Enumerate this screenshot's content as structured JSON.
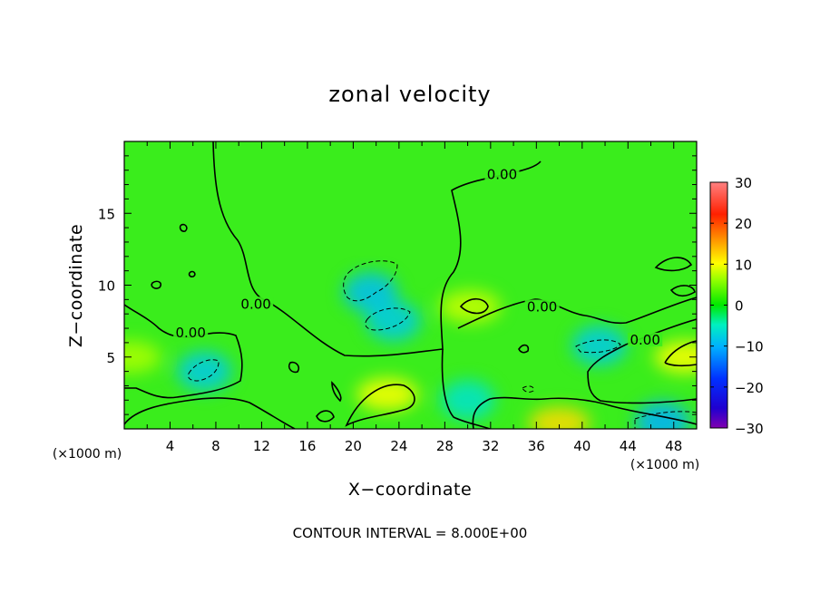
{
  "chart_data": {
    "type": "heatmap",
    "title": "zonal velocity",
    "xlabel": "X−coordinate",
    "ylabel": "Z−coordinate",
    "x_unit": "(×1000 m)",
    "y_unit": "(×1000 m)",
    "xlim": [
      0,
      50
    ],
    "ylim": [
      0,
      20
    ],
    "x_ticks": [
      4,
      8,
      12,
      16,
      20,
      24,
      28,
      32,
      36,
      40,
      44,
      48
    ],
    "y_ticks": [
      5,
      10,
      15
    ],
    "colorbar": {
      "range": [
        -30,
        30
      ],
      "ticks": [
        30,
        20,
        10,
        0,
        -10,
        -20,
        -30
      ],
      "tick_labels": [
        "30",
        "20",
        "10",
        "0",
        "−10",
        "−20",
        "−30"
      ]
    },
    "contour_interval_text": "CONTOUR INTERVAL = 8.000E+00",
    "contour_labels": [
      {
        "text": "0.00",
        "x": 33.0,
        "z": 17.5
      },
      {
        "text": "0.00",
        "x": 11.5,
        "z": 8.5
      },
      {
        "text": "0.00",
        "x": 5.8,
        "z": 6.5
      },
      {
        "text": "0.00",
        "x": 36.5,
        "z": 8.3
      },
      {
        "text": "0.00",
        "x": 45.5,
        "z": 6.0
      }
    ],
    "field_features": [
      {
        "kind": "max",
        "x": 23,
        "z": 2.4,
        "value": 10
      },
      {
        "kind": "max",
        "x": 38,
        "z": 0.4,
        "value": 12
      },
      {
        "kind": "max",
        "x": 49,
        "z": 5.0,
        "value": 10
      },
      {
        "kind": "max",
        "x": 30.2,
        "z": 8.5,
        "value": 8
      },
      {
        "kind": "max",
        "x": 0.5,
        "z": 5.0,
        "value": 7
      },
      {
        "kind": "min",
        "x": 21.5,
        "z": 9.5,
        "value": -9
      },
      {
        "kind": "min",
        "x": 23.5,
        "z": 7.5,
        "value": -8
      },
      {
        "kind": "min",
        "x": 7,
        "z": 4.0,
        "value": -8
      },
      {
        "kind": "min",
        "x": 41.5,
        "z": 5.8,
        "value": -8
      },
      {
        "kind": "min",
        "x": 47,
        "z": 0.5,
        "value": -10
      },
      {
        "kind": "min",
        "x": 30,
        "z": 2.0,
        "value": -6
      }
    ]
  }
}
